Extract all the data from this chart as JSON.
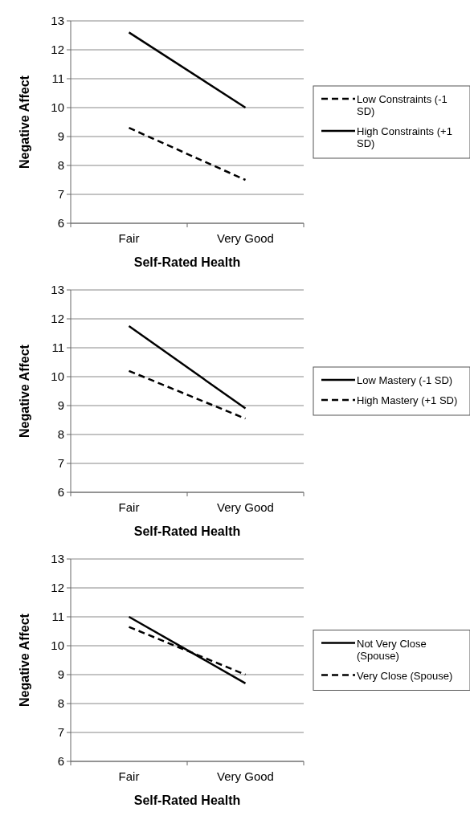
{
  "chart_data": [
    {
      "type": "line",
      "xlabel": "Self-Rated Health",
      "ylabel": "Negative Affect",
      "categories": [
        "Fair",
        "Very Good"
      ],
      "ylim": [
        6,
        13
      ],
      "yticks": [
        6,
        7,
        8,
        9,
        10,
        11,
        12,
        13
      ],
      "grid": "y",
      "legend": "right",
      "marker": "none",
      "series": [
        {
          "name": "Low Constraints (-1 SD)",
          "color": "#000000",
          "line_style": "dashed",
          "values": [
            9.3,
            7.5
          ]
        },
        {
          "name": "High Constraints (+1 SD)",
          "color": "#000000",
          "line_style": "solid",
          "values": [
            12.6,
            10.0
          ]
        }
      ]
    },
    {
      "type": "line",
      "xlabel": "Self-Rated Health",
      "ylabel": "Negative Affect",
      "categories": [
        "Fair",
        "Very Good"
      ],
      "ylim": [
        6,
        13
      ],
      "yticks": [
        6,
        7,
        8,
        9,
        10,
        11,
        12,
        13
      ],
      "grid": "y",
      "legend": "right",
      "marker": "none",
      "series": [
        {
          "name": "Low Mastery (-1 SD)",
          "color": "#000000",
          "line_style": "solid",
          "values": [
            11.75,
            8.9
          ]
        },
        {
          "name": "High Mastery (+1 SD)",
          "color": "#000000",
          "line_style": "dashed",
          "values": [
            10.2,
            8.55
          ]
        }
      ]
    },
    {
      "type": "line",
      "xlabel": "Self-Rated Health",
      "ylabel": "Negative Affect",
      "categories": [
        "Fair",
        "Very Good"
      ],
      "ylim": [
        6,
        13
      ],
      "yticks": [
        6,
        7,
        8,
        9,
        10,
        11,
        12,
        13
      ],
      "grid": "y",
      "legend": "right",
      "marker": "none",
      "series": [
        {
          "name": "Not Very Close (Spouse)",
          "color": "#000000",
          "line_style": "solid",
          "values": [
            11.0,
            8.7
          ]
        },
        {
          "name": "Very Close (Spouse)",
          "color": "#000000",
          "line_style": "dashed",
          "values": [
            10.65,
            9.0
          ]
        }
      ]
    }
  ]
}
